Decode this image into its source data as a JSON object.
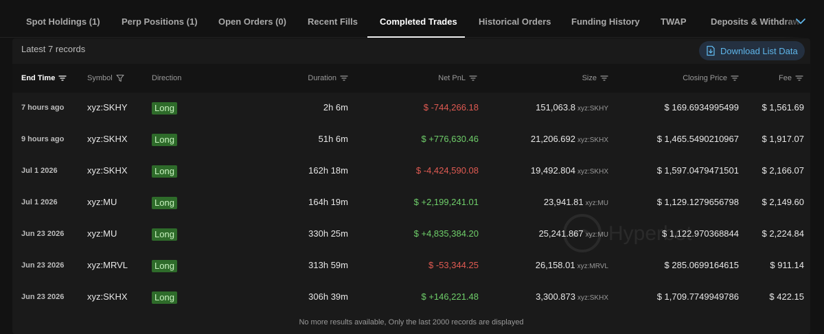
{
  "tabs": [
    {
      "label": "Spot Holdings (1)"
    },
    {
      "label": "Perp Positions (1)"
    },
    {
      "label": "Open Orders (0)"
    },
    {
      "label": "Recent Fills"
    },
    {
      "label": "Completed Trades"
    },
    {
      "label": "Historical Orders"
    },
    {
      "label": "Funding History"
    },
    {
      "label": "TWAP"
    },
    {
      "label": "Deposits & Withdraw"
    }
  ],
  "active_tab": "Completed Trades",
  "toolbar": {
    "records_label": "Latest 7 records",
    "download_label": "Download List Data"
  },
  "table": {
    "headers": {
      "end_time": "End Time",
      "symbol": "Symbol",
      "direction": "Direction",
      "duration": "Duration",
      "net_pnl": "Net PnL",
      "size": "Size",
      "closing_price": "Closing Price",
      "fee": "Fee"
    },
    "rows": [
      {
        "end_time": "7 hours ago",
        "symbol": "xyz:SKHY",
        "direction": "Long",
        "duration": "2h 6m",
        "net_pnl": "$ -744,266.18",
        "pnl_sign": "neg",
        "size": "151,063.8",
        "size_unit": "xyz:SKHY",
        "closing_price": "$ 169.6934995499",
        "fee": "$ 1,561.69"
      },
      {
        "end_time": "9 hours ago",
        "symbol": "xyz:SKHX",
        "direction": "Long",
        "duration": "51h 6m",
        "net_pnl": "$ +776,630.46",
        "pnl_sign": "pos",
        "size": "21,206.692",
        "size_unit": "xyz:SKHX",
        "closing_price": "$ 1,465.5490210967",
        "fee": "$ 1,917.07"
      },
      {
        "end_time": "Jul 1 2026",
        "symbol": "xyz:SKHX",
        "direction": "Long",
        "duration": "162h 18m",
        "net_pnl": "$ -4,424,590.08",
        "pnl_sign": "neg",
        "size": "19,492.804",
        "size_unit": "xyz:SKHX",
        "closing_price": "$ 1,597.0479471501",
        "fee": "$ 2,166.07"
      },
      {
        "end_time": "Jul 1 2026",
        "symbol": "xyz:MU",
        "direction": "Long",
        "duration": "164h 19m",
        "net_pnl": "$ +2,199,241.01",
        "pnl_sign": "pos",
        "size": "23,941.81",
        "size_unit": "xyz:MU",
        "closing_price": "$ 1,129.1279656798",
        "fee": "$ 2,149.60"
      },
      {
        "end_time": "Jun 23 2026",
        "symbol": "xyz:MU",
        "direction": "Long",
        "duration": "330h 25m",
        "net_pnl": "$ +4,835,384.20",
        "pnl_sign": "pos",
        "size": "25,241.867",
        "size_unit": "xyz:MU",
        "closing_price": "$ 1,122.970368844",
        "fee": "$ 2,224.84"
      },
      {
        "end_time": "Jun 23 2026",
        "symbol": "xyz:MRVL",
        "direction": "Long",
        "duration": "313h 59m",
        "net_pnl": "$ -53,344.25",
        "pnl_sign": "neg",
        "size": "26,158.01",
        "size_unit": "xyz:MRVL",
        "closing_price": "$ 285.0699164615",
        "fee": "$ 911.14"
      },
      {
        "end_time": "Jun 23 2026",
        "symbol": "xyz:SKHX",
        "direction": "Long",
        "duration": "306h 39m",
        "net_pnl": "$ +146,221.48",
        "pnl_sign": "pos",
        "size": "3,300.873",
        "size_unit": "xyz:SKHX",
        "closing_price": "$ 1,709.7749949786",
        "fee": "$ 422.15"
      }
    ]
  },
  "footer_note": "No more results available, Only the last 2000 records are displayed",
  "watermark": "Hyperbot",
  "colors": {
    "positive": "#6fcf6a",
    "negative": "#e05a52",
    "accent": "#5fb6ea",
    "badge_bg": "#2e6b2a"
  },
  "icons": {
    "sort": "sort-lines-icon",
    "filter": "funnel-icon",
    "download": "download-file-icon",
    "more_tabs": "chevron-down-icon"
  }
}
